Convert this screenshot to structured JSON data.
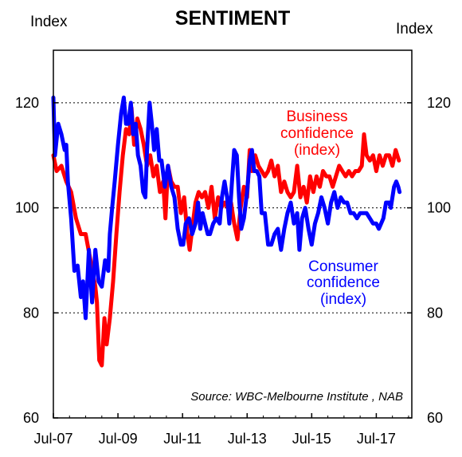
{
  "chart_data": {
    "type": "line",
    "title": "SENTIMENT",
    "y_unit_left": "Index",
    "y_unit_right": "Index",
    "ylim": [
      60,
      130
    ],
    "yticks": [
      60,
      80,
      100,
      120
    ],
    "y_tick_labels": [
      "60",
      "80",
      "100",
      "120"
    ],
    "gridlines": [
      80,
      100,
      120
    ],
    "x_tick_labels": [
      "Jul-07",
      "Jul-09",
      "Jul-11",
      "Jul-13",
      "Jul-15",
      "Jul-17"
    ],
    "x_tick_positions": [
      2007.5,
      2009.5,
      2011.5,
      2013.5,
      2015.5,
      2017.5
    ],
    "xlim": [
      2007.5,
      2018.6
    ],
    "source": "Source: WBC-Melbourne Institute , NAB",
    "series": [
      {
        "name": "Business confidence (index)",
        "label_lines": [
          "Business",
          "confidence",
          "(index)"
        ],
        "color": "#ff0000",
        "points": [
          [
            2007.5,
            110
          ],
          [
            2007.6,
            107
          ],
          [
            2007.75,
            108
          ],
          [
            2007.9,
            105
          ],
          [
            2008.05,
            103
          ],
          [
            2008.2,
            98
          ],
          [
            2008.35,
            95
          ],
          [
            2008.5,
            95
          ],
          [
            2008.65,
            90
          ],
          [
            2008.8,
            85
          ],
          [
            2008.85,
            82
          ],
          [
            2008.92,
            71
          ],
          [
            2009.0,
            70
          ],
          [
            2009.08,
            79
          ],
          [
            2009.15,
            74
          ],
          [
            2009.25,
            79
          ],
          [
            2009.35,
            86
          ],
          [
            2009.45,
            95
          ],
          [
            2009.55,
            103
          ],
          [
            2009.65,
            110
          ],
          [
            2009.75,
            115
          ],
          [
            2009.85,
            114
          ],
          [
            2009.92,
            119
          ],
          [
            2010.0,
            112
          ],
          [
            2010.1,
            117
          ],
          [
            2010.2,
            115
          ],
          [
            2010.3,
            112
          ],
          [
            2010.4,
            108
          ],
          [
            2010.5,
            110
          ],
          [
            2010.6,
            106
          ],
          [
            2010.7,
            108
          ],
          [
            2010.8,
            103
          ],
          [
            2010.9,
            105
          ],
          [
            2010.97,
            98
          ],
          [
            2011.05,
            108
          ],
          [
            2011.15,
            105
          ],
          [
            2011.25,
            104
          ],
          [
            2011.35,
            104
          ],
          [
            2011.45,
            99
          ],
          [
            2011.55,
            102
          ],
          [
            2011.65,
            95
          ],
          [
            2011.72,
            92
          ],
          [
            2011.8,
            96
          ],
          [
            2011.9,
            101
          ],
          [
            2012.0,
            103
          ],
          [
            2012.1,
            102
          ],
          [
            2012.2,
            103
          ],
          [
            2012.3,
            100
          ],
          [
            2012.4,
            104
          ],
          [
            2012.5,
            98
          ],
          [
            2012.6,
            102
          ],
          [
            2012.7,
            100
          ],
          [
            2012.8,
            101
          ],
          [
            2012.9,
            100
          ],
          [
            2013.0,
            101
          ],
          [
            2013.1,
            97
          ],
          [
            2013.2,
            94
          ],
          [
            2013.3,
            100
          ],
          [
            2013.4,
            104
          ],
          [
            2013.5,
            102
          ],
          [
            2013.58,
            111
          ],
          [
            2013.65,
            107
          ],
          [
            2013.75,
            110
          ],
          [
            2013.85,
            108
          ],
          [
            2013.95,
            107
          ],
          [
            2014.05,
            106
          ],
          [
            2014.15,
            107
          ],
          [
            2014.25,
            109
          ],
          [
            2014.35,
            106
          ],
          [
            2014.45,
            108
          ],
          [
            2014.55,
            103
          ],
          [
            2014.65,
            105
          ],
          [
            2014.75,
            103
          ],
          [
            2014.85,
            102
          ],
          [
            2014.95,
            103
          ],
          [
            2015.05,
            108
          ],
          [
            2015.15,
            102
          ],
          [
            2015.25,
            104
          ],
          [
            2015.35,
            101
          ],
          [
            2015.45,
            106
          ],
          [
            2015.55,
            103
          ],
          [
            2015.65,
            106
          ],
          [
            2015.75,
            104
          ],
          [
            2015.85,
            107
          ],
          [
            2015.95,
            106
          ],
          [
            2016.05,
            106
          ],
          [
            2016.15,
            104
          ],
          [
            2016.25,
            106
          ],
          [
            2016.35,
            108
          ],
          [
            2016.45,
            107
          ],
          [
            2016.55,
            106
          ],
          [
            2016.65,
            107
          ],
          [
            2016.75,
            106
          ],
          [
            2016.85,
            107
          ],
          [
            2016.95,
            107
          ],
          [
            2017.05,
            108
          ],
          [
            2017.12,
            114
          ],
          [
            2017.2,
            110
          ],
          [
            2017.3,
            109
          ],
          [
            2017.4,
            110
          ],
          [
            2017.5,
            107
          ],
          [
            2017.6,
            110
          ],
          [
            2017.7,
            108
          ],
          [
            2017.8,
            110
          ],
          [
            2017.9,
            110
          ],
          [
            2018.0,
            108
          ],
          [
            2018.1,
            111
          ],
          [
            2018.2,
            109
          ]
        ]
      },
      {
        "name": "Consumer confidence (index)",
        "label_lines": [
          "Consumer",
          "confidence",
          "(index)"
        ],
        "color": "#0000ff",
        "points": [
          [
            2007.5,
            121
          ],
          [
            2007.55,
            110
          ],
          [
            2007.65,
            116
          ],
          [
            2007.75,
            114
          ],
          [
            2007.85,
            111
          ],
          [
            2007.9,
            112
          ],
          [
            2007.95,
            105
          ],
          [
            2008.05,
            98
          ],
          [
            2008.15,
            88
          ],
          [
            2008.25,
            89
          ],
          [
            2008.35,
            83
          ],
          [
            2008.42,
            86
          ],
          [
            2008.5,
            79
          ],
          [
            2008.6,
            92
          ],
          [
            2008.7,
            82
          ],
          [
            2008.8,
            92
          ],
          [
            2008.9,
            86
          ],
          [
            2009.0,
            85
          ],
          [
            2009.1,
            90
          ],
          [
            2009.2,
            88
          ],
          [
            2009.25,
            95
          ],
          [
            2009.32,
            100
          ],
          [
            2009.4,
            105
          ],
          [
            2009.5,
            112
          ],
          [
            2009.6,
            118
          ],
          [
            2009.68,
            121
          ],
          [
            2009.75,
            116
          ],
          [
            2009.82,
            116
          ],
          [
            2009.9,
            120
          ],
          [
            2009.97,
            114
          ],
          [
            2010.05,
            116
          ],
          [
            2010.12,
            110
          ],
          [
            2010.2,
            108
          ],
          [
            2010.28,
            103
          ],
          [
            2010.35,
            102
          ],
          [
            2010.4,
            111
          ],
          [
            2010.48,
            120
          ],
          [
            2010.55,
            116
          ],
          [
            2010.62,
            111
          ],
          [
            2010.7,
            115
          ],
          [
            2010.78,
            109
          ],
          [
            2010.85,
            109
          ],
          [
            2010.95,
            104
          ],
          [
            2011.05,
            108
          ],
          [
            2011.15,
            104
          ],
          [
            2011.25,
            102
          ],
          [
            2011.35,
            96
          ],
          [
            2011.45,
            93
          ],
          [
            2011.52,
            93
          ],
          [
            2011.6,
            97
          ],
          [
            2011.7,
            98
          ],
          [
            2011.8,
            95
          ],
          [
            2011.9,
            97
          ],
          [
            2011.98,
            101
          ],
          [
            2012.05,
            96
          ],
          [
            2012.12,
            99
          ],
          [
            2012.2,
            97
          ],
          [
            2012.28,
            95
          ],
          [
            2012.35,
            95
          ],
          [
            2012.45,
            97
          ],
          [
            2012.55,
            98
          ],
          [
            2012.65,
            97
          ],
          [
            2012.72,
            102
          ],
          [
            2012.8,
            105
          ],
          [
            2012.88,
            102
          ],
          [
            2012.95,
            97
          ],
          [
            2013.02,
            104
          ],
          [
            2013.1,
            111
          ],
          [
            2013.18,
            110
          ],
          [
            2013.25,
            102
          ],
          [
            2013.32,
            96
          ],
          [
            2013.4,
            98
          ],
          [
            2013.5,
            103
          ],
          [
            2013.58,
            109
          ],
          [
            2013.65,
            111
          ],
          [
            2013.72,
            107
          ],
          [
            2013.8,
            107
          ],
          [
            2013.88,
            106
          ],
          [
            2013.95,
            99
          ],
          [
            2014.05,
            99
          ],
          [
            2014.15,
            93
          ],
          [
            2014.25,
            93
          ],
          [
            2014.35,
            95
          ],
          [
            2014.45,
            96
          ],
          [
            2014.55,
            92
          ],
          [
            2014.65,
            96
          ],
          [
            2014.75,
            99
          ],
          [
            2014.85,
            101
          ],
          [
            2014.95,
            97
          ],
          [
            2015.05,
            99
          ],
          [
            2015.12,
            92
          ],
          [
            2015.2,
            98
          ],
          [
            2015.3,
            100
          ],
          [
            2015.4,
            96
          ],
          [
            2015.5,
            93
          ],
          [
            2015.6,
            97
          ],
          [
            2015.7,
            99
          ],
          [
            2015.8,
            102
          ],
          [
            2015.9,
            100
          ],
          [
            2016.0,
            97
          ],
          [
            2016.1,
            101
          ],
          [
            2016.2,
            103
          ],
          [
            2016.3,
            100
          ],
          [
            2016.4,
            102
          ],
          [
            2016.5,
            101
          ],
          [
            2016.6,
            101
          ],
          [
            2016.7,
            99
          ],
          [
            2016.8,
            99
          ],
          [
            2016.9,
            98
          ],
          [
            2017.0,
            99
          ],
          [
            2017.1,
            99
          ],
          [
            2017.2,
            99
          ],
          [
            2017.3,
            98
          ],
          [
            2017.4,
            97
          ],
          [
            2017.5,
            97
          ],
          [
            2017.58,
            96
          ],
          [
            2017.65,
            97
          ],
          [
            2017.72,
            98
          ],
          [
            2017.8,
            101
          ],
          [
            2017.9,
            101
          ],
          [
            2017.95,
            100
          ],
          [
            2018.05,
            104
          ],
          [
            2018.12,
            105
          ],
          [
            2018.18,
            104
          ],
          [
            2018.22,
            103
          ]
        ]
      }
    ]
  }
}
